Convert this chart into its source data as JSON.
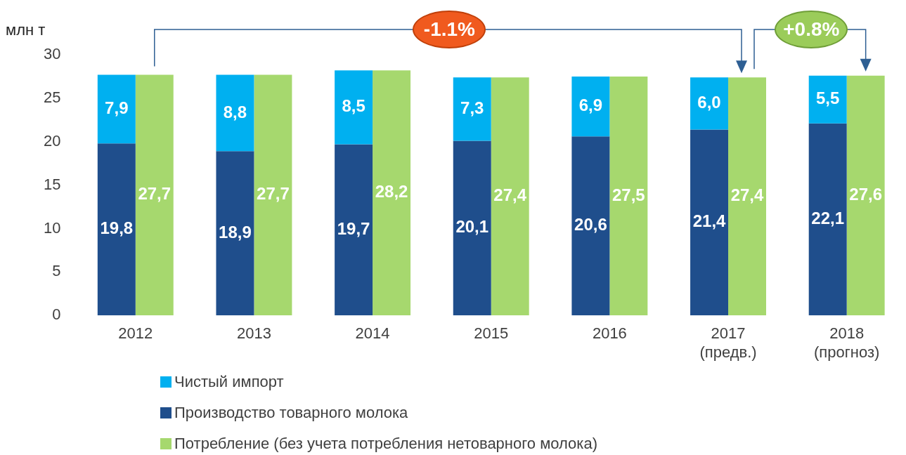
{
  "chart_data": {
    "type": "bar",
    "ylabel": "млн т",
    "categories": [
      "2012",
      "2013",
      "2014",
      "2015",
      "2016",
      "2017\n(предв.)",
      "2018\n(прогноз)"
    ],
    "series": [
      {
        "name": "Чистый импорт",
        "color": "#00b0f0",
        "base": [
          19.8,
          18.9,
          19.7,
          20.1,
          20.6,
          21.4,
          22.1
        ],
        "values": [
          7.9,
          8.8,
          8.5,
          7.3,
          6.9,
          6.0,
          5.5
        ],
        "value_labels": [
          "7,9",
          "8,8",
          "8,5",
          "7,3",
          "6,9",
          "6,0",
          "5,5"
        ]
      },
      {
        "name": "Производство товарного молока",
        "color": "#1f4e8c",
        "values": [
          19.8,
          18.9,
          19.7,
          20.1,
          20.6,
          21.4,
          22.1
        ],
        "value_labels": [
          "19,8",
          "18,9",
          "19,7",
          "20,1",
          "20,6",
          "21,4",
          "22,1"
        ]
      },
      {
        "name": "Потребление (без учета потребления нетоварного молока)",
        "color": "#a6d86e",
        "values": [
          27.7,
          27.7,
          28.2,
          27.4,
          27.5,
          27.4,
          27.6
        ],
        "value_labels": [
          "27,7",
          "27,7",
          "28,2",
          "27,4",
          "27,5",
          "27,4",
          "27,6"
        ]
      }
    ],
    "ylim": [
      0,
      30
    ],
    "yticks": [
      0,
      5,
      10,
      15,
      20,
      25,
      30
    ],
    "grid": false,
    "legend": "bottom left",
    "annotations": [
      "-1.1%",
      "+0.8%"
    ]
  }
}
